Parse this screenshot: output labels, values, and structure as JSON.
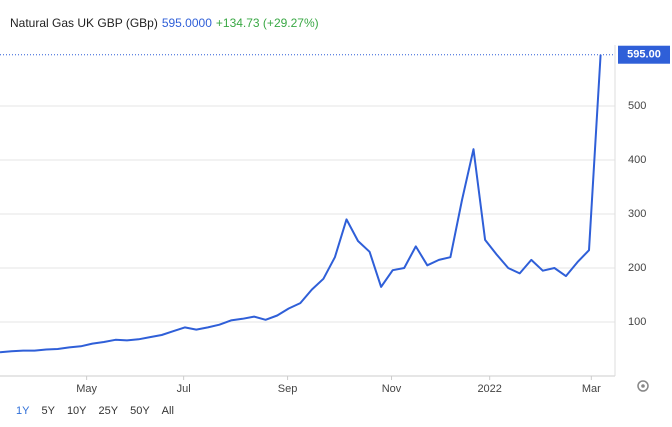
{
  "chart_data": {
    "type": "line",
    "title": "Natural Gas UK GBP (GBp)",
    "price": "595.0000",
    "change": "+134.73 (+29.27%)",
    "series": [
      {
        "name": "Natural Gas UK GBP (GBp)",
        "color": "#2f5fd8",
        "values": [
          44,
          46,
          47,
          47,
          49,
          50,
          53,
          55,
          60,
          63,
          67,
          66,
          68,
          72,
          76,
          83,
          90,
          86,
          90,
          95,
          103,
          106,
          110,
          104,
          112,
          125,
          135,
          160,
          180,
          220,
          290,
          250,
          230,
          165,
          196,
          200,
          240,
          205,
          215,
          220,
          326,
          420,
          252,
          225,
          200,
          190,
          215,
          195,
          200,
          185,
          211,
          233,
          595
        ]
      }
    ],
    "last_value_label": "595.00",
    "xlim": [
      0,
      53.25
    ],
    "xticks": [
      {
        "value": 7.5,
        "label": "May"
      },
      {
        "value": 15.9,
        "label": "Jul"
      },
      {
        "value": 24.9,
        "label": "Sep"
      },
      {
        "value": 33.9,
        "label": "Nov"
      },
      {
        "value": 42.4,
        "label": "2022"
      },
      {
        "value": 51.2,
        "label": "Mar"
      }
    ],
    "ylim": [
      0,
      613
    ],
    "yticks": [
      100,
      200,
      300,
      400,
      500
    ],
    "grid": true,
    "range_buttons": [
      "1Y",
      "5Y",
      "10Y",
      "25Y",
      "50Y",
      "All"
    ],
    "active_range": 0
  }
}
